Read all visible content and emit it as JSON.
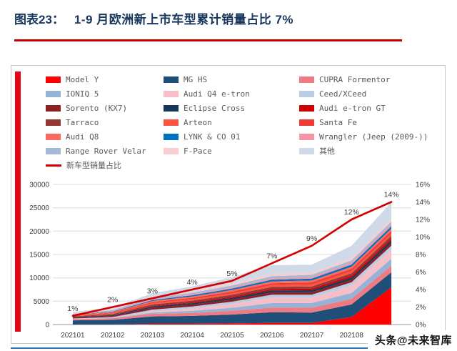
{
  "header": {
    "label": "图表23：",
    "title": "1-9 月欧洲新上市车型累计销量占比 7%"
  },
  "watermark": {
    "text": "头条@未来智库"
  },
  "theme": {
    "title_color": "#17365d",
    "rule_color": "#c00000",
    "side_bar_color": "#e30613",
    "footer_rule_color": "#2e74b5"
  },
  "chart_data": {
    "type": "area",
    "stacked": true,
    "grid": true,
    "legend_position": "top",
    "categories": [
      "202101",
      "202102",
      "202103",
      "202104",
      "202105",
      "202106",
      "202107",
      "202108",
      "202109"
    ],
    "series": [
      {
        "name": "Model Y",
        "color": "#fe0000",
        "values": [
          0,
          0,
          150,
          150,
          250,
          350,
          350,
          1600,
          8000
        ]
      },
      {
        "name": "MG HS",
        "color": "#1f4e79",
        "values": [
          900,
          1000,
          1600,
          1700,
          1900,
          2300,
          2200,
          2700,
          3200
        ]
      },
      {
        "name": "CUPRA Formentor",
        "color": "#ef7a82",
        "values": [
          250,
          350,
          550,
          650,
          800,
          1000,
          1050,
          1200,
          1400
        ]
      },
      {
        "name": "IONIQ 5",
        "color": "#95b3d7",
        "values": [
          0,
          50,
          250,
          450,
          650,
          950,
          1000,
          1250,
          1500
        ]
      },
      {
        "name": "Audi Q4 e-tron",
        "color": "#f5bec8",
        "values": [
          0,
          0,
          300,
          500,
          800,
          1200,
          1150,
          1600,
          2000
        ]
      },
      {
        "name": "Ceed/XCeed",
        "color": "#b9cde5",
        "values": [
          150,
          200,
          350,
          400,
          500,
          600,
          650,
          700,
          800
        ]
      },
      {
        "name": "Sorento (KX7)",
        "color": "#8c2022",
        "values": [
          200,
          250,
          400,
          420,
          460,
          500,
          520,
          560,
          600
        ]
      },
      {
        "name": "Eclipse Cross",
        "color": "#16365c",
        "values": [
          100,
          150,
          250,
          300,
          350,
          400,
          420,
          460,
          500
        ]
      },
      {
        "name": "Audi e-tron GT",
        "color": "#d00000",
        "values": [
          0,
          50,
          150,
          200,
          250,
          300,
          350,
          400,
          450
        ]
      },
      {
        "name": "Tarraco",
        "color": "#953735",
        "values": [
          150,
          200,
          300,
          350,
          400,
          450,
          470,
          510,
          550
        ]
      },
      {
        "name": "Arteon",
        "color": "#fd553f",
        "values": [
          100,
          150,
          250,
          300,
          350,
          400,
          420,
          460,
          500
        ]
      },
      {
        "name": "Santa Fe",
        "color": "#ee3b33",
        "values": [
          100,
          150,
          250,
          300,
          350,
          400,
          450,
          500,
          550
        ]
      },
      {
        "name": "Audi Q8",
        "color": "#f96a62",
        "values": [
          100,
          150,
          250,
          300,
          350,
          400,
          400,
          450,
          500
        ]
      },
      {
        "name": "LYNK & CO 01",
        "color": "#0070c0",
        "values": [
          50,
          100,
          200,
          250,
          300,
          350,
          400,
          450,
          500
        ]
      },
      {
        "name": "Wrangler (Jeep (2009-))",
        "color": "#f197a6",
        "values": [
          50,
          100,
          150,
          200,
          250,
          300,
          350,
          400,
          450
        ]
      },
      {
        "name": "Range Rover Velar",
        "color": "#a3b9d4",
        "values": [
          150,
          200,
          300,
          350,
          400,
          450,
          470,
          510,
          550
        ]
      },
      {
        "name": "F-Pace",
        "color": "#f8cdd2",
        "values": [
          150,
          200,
          300,
          350,
          400,
          450,
          460,
          500,
          550
        ]
      },
      {
        "name": "其他",
        "color": "#cfd9e8",
        "values": [
          250,
          350,
          700,
          1000,
          1400,
          1900,
          1700,
          2600,
          3600
        ]
      }
    ],
    "line_series": {
      "name": "新车型销量占比",
      "color": "#d40000",
      "axis": "right",
      "values_percent": [
        1,
        2,
        3,
        4,
        5,
        7,
        9,
        12,
        14
      ],
      "labels": [
        "1%",
        "2%",
        "3%",
        "4%",
        "5%",
        "7%",
        "9%",
        "12%",
        "14%"
      ]
    },
    "left_axis": {
      "min": 0,
      "max": 30000,
      "step": 5000,
      "tick_labels": [
        "0",
        "5000",
        "10000",
        "15000",
        "20000",
        "25000",
        "30000"
      ]
    },
    "right_axis": {
      "min": 0,
      "max": 16,
      "step": 2,
      "tick_labels": [
        "0%",
        "2%",
        "4%",
        "6%",
        "8%",
        "10%",
        "12%",
        "14%",
        "16%"
      ]
    }
  }
}
